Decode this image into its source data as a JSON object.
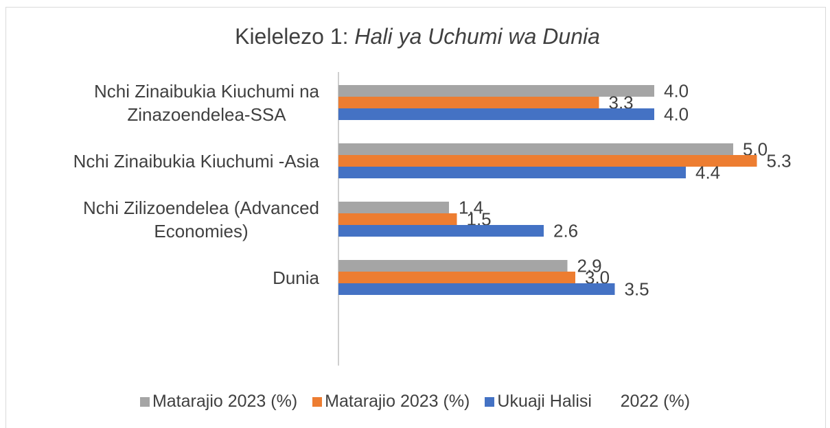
{
  "chart_data": {
    "type": "hbar",
    "title": [
      "Kielelezo 1: ",
      "Hali ya Uchumi wa Dunia"
    ],
    "categories": [
      "Nchi Zinaibukia Kiuchumi na\nZinazoendelea-SSA",
      "Nchi Zinaibukia Kiuchumi -Asia",
      "Nchi Zilizoendelea (Advanced\nEconomies)",
      "Dunia"
    ],
    "series": [
      {
        "name": "Matarajio 2023 (%)",
        "color": "#a5a5a5",
        "values": [
          4.0,
          5.0,
          1.4,
          2.9
        ],
        "value_labels": [
          "4.0",
          "5.0",
          "1.4",
          "2.9"
        ]
      },
      {
        "name": "Matarajio 2023 (%)",
        "color": "#ed7d31",
        "values": [
          3.3,
          5.3,
          1.5,
          3.0
        ],
        "value_labels": [
          "3.3",
          "5.3",
          "1.5",
          "3.0"
        ]
      },
      {
        "name": "Ukuaji Halisi      2022 (%)",
        "color": "#4472c4",
        "values": [
          4.0,
          4.4,
          2.6,
          3.5
        ],
        "value_labels": [
          "4.0",
          "4.4",
          "2.6",
          "3.5"
        ]
      }
    ],
    "xlim": [
      0,
      6
    ],
    "legend": "bottom"
  }
}
